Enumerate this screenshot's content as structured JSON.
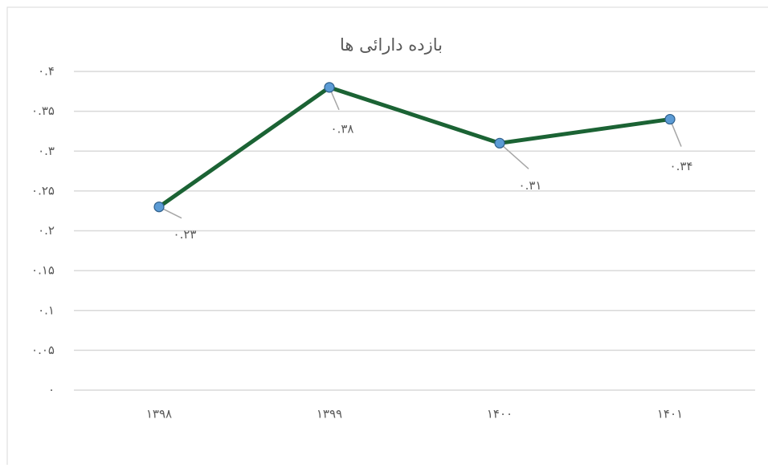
{
  "chart_data": {
    "type": "line",
    "title": "بازده دارائی ها",
    "categories": [
      "۱۳۹۸",
      "۱۳۹۹",
      "۱۴۰۰",
      "۱۴۰۱"
    ],
    "series": [
      {
        "name": "بازده دارائی ها",
        "color": "#1b6334",
        "values": [
          0.23,
          0.38,
          0.31,
          0.34
        ],
        "value_labels": [
          "۰.۲۳",
          "۰.۳۸",
          "۰.۳۱",
          "۰.۳۴"
        ]
      }
    ],
    "ylim": [
      0,
      0.4
    ],
    "yticks": [
      {
        "value": 0,
        "label": "۰"
      },
      {
        "value": 0.05,
        "label": "۰.۰۵"
      },
      {
        "value": 0.1,
        "label": "۰.۱"
      },
      {
        "value": 0.15,
        "label": "۰.۱۵"
      },
      {
        "value": 0.2,
        "label": "۰.۲"
      },
      {
        "value": 0.25,
        "label": "۰.۲۵"
      },
      {
        "value": 0.3,
        "label": "۰.۳"
      },
      {
        "value": 0.35,
        "label": "۰.۳۵"
      },
      {
        "value": 0.4,
        "label": "۰.۴"
      }
    ],
    "grid": true,
    "marker_color": "#5b9bd5"
  }
}
